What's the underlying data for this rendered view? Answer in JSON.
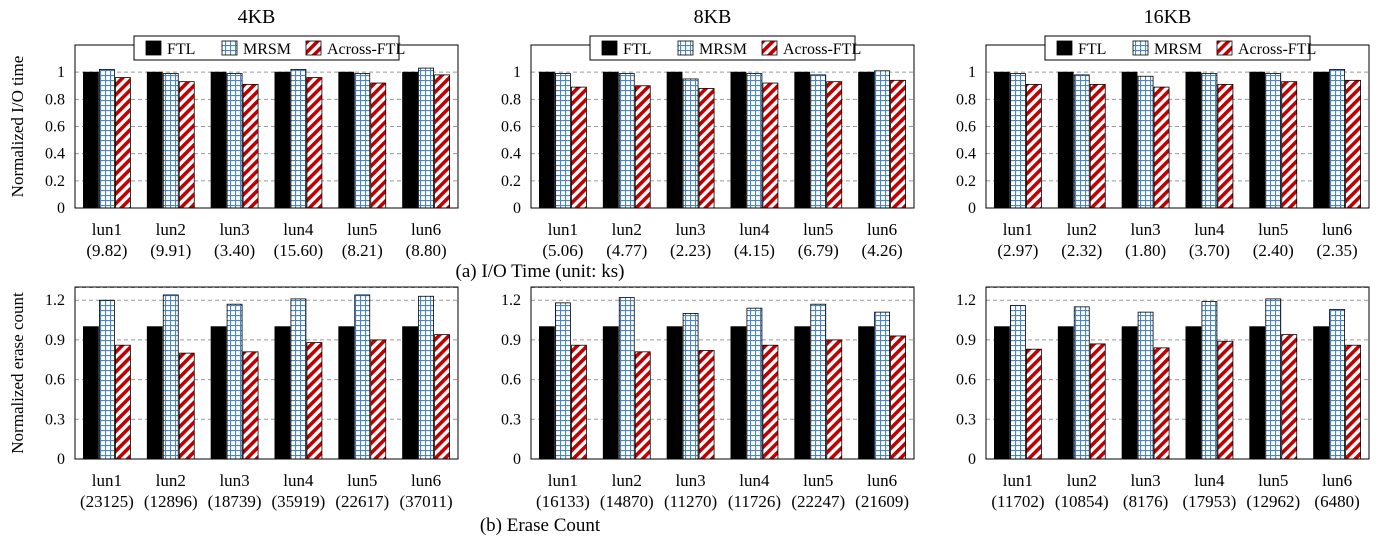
{
  "captions": {
    "io": "(a) I/O Time (unit: ks)",
    "erase": "(b) Erase Count"
  },
  "colors": {
    "ftl": "#000000",
    "mrsm_fill": "#ffffff",
    "mrsm_grid": "#4a86c5",
    "across_fill": "#ffffff",
    "across_stripe": "#c00000",
    "gridline": "#999999",
    "frame": "#000000"
  },
  "chart_data": [
    {
      "type": "bar",
      "title": "4KB",
      "ylabel": "Normalized I/O time",
      "ylim": [
        0,
        1.2
      ],
      "yticks": [
        0,
        0.2,
        0.4,
        0.6,
        0.8,
        1
      ],
      "grid": true,
      "legend": "top",
      "categories": [
        "lun1",
        "lun2",
        "lun3",
        "lun4",
        "lun5",
        "lun6"
      ],
      "sublabels": [
        "(9.82)",
        "(9.91)",
        "(3.40)",
        "(15.60)",
        "(8.21)",
        "(8.80)"
      ],
      "series": [
        {
          "name": "FTL",
          "values": [
            1,
            1,
            1,
            1,
            1,
            1
          ]
        },
        {
          "name": "MRSM",
          "values": [
            1.02,
            0.99,
            0.99,
            1.02,
            0.99,
            1.03
          ]
        },
        {
          "name": "Across-FTL",
          "values": [
            0.96,
            0.93,
            0.91,
            0.96,
            0.92,
            0.98
          ]
        }
      ]
    },
    {
      "type": "bar",
      "title": "8KB",
      "ylabel": "",
      "ylim": [
        0,
        1.2
      ],
      "yticks": [
        0,
        0.2,
        0.4,
        0.6,
        0.8,
        1
      ],
      "grid": true,
      "legend": "top",
      "categories": [
        "lun1",
        "lun2",
        "lun3",
        "lun4",
        "lun5",
        "lun6"
      ],
      "sublabels": [
        "(5.06)",
        "(4.77)",
        "(2.23)",
        "(4.15)",
        "(6.79)",
        "(4.26)"
      ],
      "series": [
        {
          "name": "FTL",
          "values": [
            1,
            1,
            1,
            1,
            1,
            1
          ]
        },
        {
          "name": "MRSM",
          "values": [
            0.99,
            0.99,
            0.95,
            0.99,
            0.98,
            1.01
          ]
        },
        {
          "name": "Across-FTL",
          "values": [
            0.89,
            0.9,
            0.88,
            0.92,
            0.93,
            0.94
          ]
        }
      ]
    },
    {
      "type": "bar",
      "title": "16KB",
      "ylabel": "",
      "ylim": [
        0,
        1.2
      ],
      "yticks": [
        0,
        0.2,
        0.4,
        0.6,
        0.8,
        1
      ],
      "grid": true,
      "legend": "top",
      "categories": [
        "lun1",
        "lun2",
        "lun3",
        "lun4",
        "lun5",
        "lun6"
      ],
      "sublabels": [
        "(2.97)",
        "(2.32)",
        "(1.80)",
        "(3.70)",
        "(2.40)",
        "(2.35)"
      ],
      "series": [
        {
          "name": "FTL",
          "values": [
            1,
            1,
            1,
            1,
            1,
            1
          ]
        },
        {
          "name": "MRSM",
          "values": [
            0.99,
            0.98,
            0.97,
            0.99,
            0.99,
            1.02
          ]
        },
        {
          "name": "Across-FTL",
          "values": [
            0.91,
            0.91,
            0.89,
            0.91,
            0.93,
            0.94
          ]
        }
      ]
    },
    {
      "type": "bar",
      "title": "",
      "ylabel": "Normalized erase count",
      "ylim": [
        0,
        1.3
      ],
      "yticks": [
        0,
        0.3,
        0.6,
        0.9,
        1.2
      ],
      "grid": true,
      "categories": [
        "lun1",
        "lun2",
        "lun3",
        "lun4",
        "lun5",
        "lun6"
      ],
      "sublabels": [
        "(23125)",
        "(12896)",
        "(18739)",
        "(35919)",
        "(22617)",
        "(37011)"
      ],
      "series": [
        {
          "name": "FTL",
          "values": [
            1,
            1,
            1,
            1,
            1,
            1
          ]
        },
        {
          "name": "MRSM",
          "values": [
            1.2,
            1.24,
            1.17,
            1.21,
            1.24,
            1.23
          ]
        },
        {
          "name": "Across-FTL",
          "values": [
            0.86,
            0.8,
            0.81,
            0.88,
            0.9,
            0.94
          ]
        }
      ]
    },
    {
      "type": "bar",
      "title": "",
      "ylabel": "",
      "ylim": [
        0,
        1.3
      ],
      "yticks": [
        0,
        0.3,
        0.6,
        0.9,
        1.2
      ],
      "grid": true,
      "categories": [
        "lun1",
        "lun2",
        "lun3",
        "lun4",
        "lun5",
        "lun6"
      ],
      "sublabels": [
        "(16133)",
        "(14870)",
        "(11270)",
        "(11726)",
        "(22247)",
        "(21609)"
      ],
      "series": [
        {
          "name": "FTL",
          "values": [
            1,
            1,
            1,
            1,
            1,
            1
          ]
        },
        {
          "name": "MRSM",
          "values": [
            1.18,
            1.22,
            1.1,
            1.14,
            1.17,
            1.11
          ]
        },
        {
          "name": "Across-FTL",
          "values": [
            0.86,
            0.81,
            0.82,
            0.86,
            0.9,
            0.93
          ]
        }
      ]
    },
    {
      "type": "bar",
      "title": "",
      "ylabel": "",
      "ylim": [
        0,
        1.3
      ],
      "yticks": [
        0,
        0.3,
        0.6,
        0.9,
        1.2
      ],
      "grid": true,
      "categories": [
        "lun1",
        "lun2",
        "lun3",
        "lun4",
        "lun5",
        "lun6"
      ],
      "sublabels": [
        "(11702)",
        "(10854)",
        "(8176)",
        "(17953)",
        "(12962)",
        "(6480)"
      ],
      "series": [
        {
          "name": "FTL",
          "values": [
            1,
            1,
            1,
            1,
            1,
            1
          ]
        },
        {
          "name": "MRSM",
          "values": [
            1.16,
            1.15,
            1.11,
            1.19,
            1.21,
            1.13
          ]
        },
        {
          "name": "Across-FTL",
          "values": [
            0.83,
            0.87,
            0.84,
            0.89,
            0.94,
            0.86
          ]
        }
      ]
    }
  ]
}
